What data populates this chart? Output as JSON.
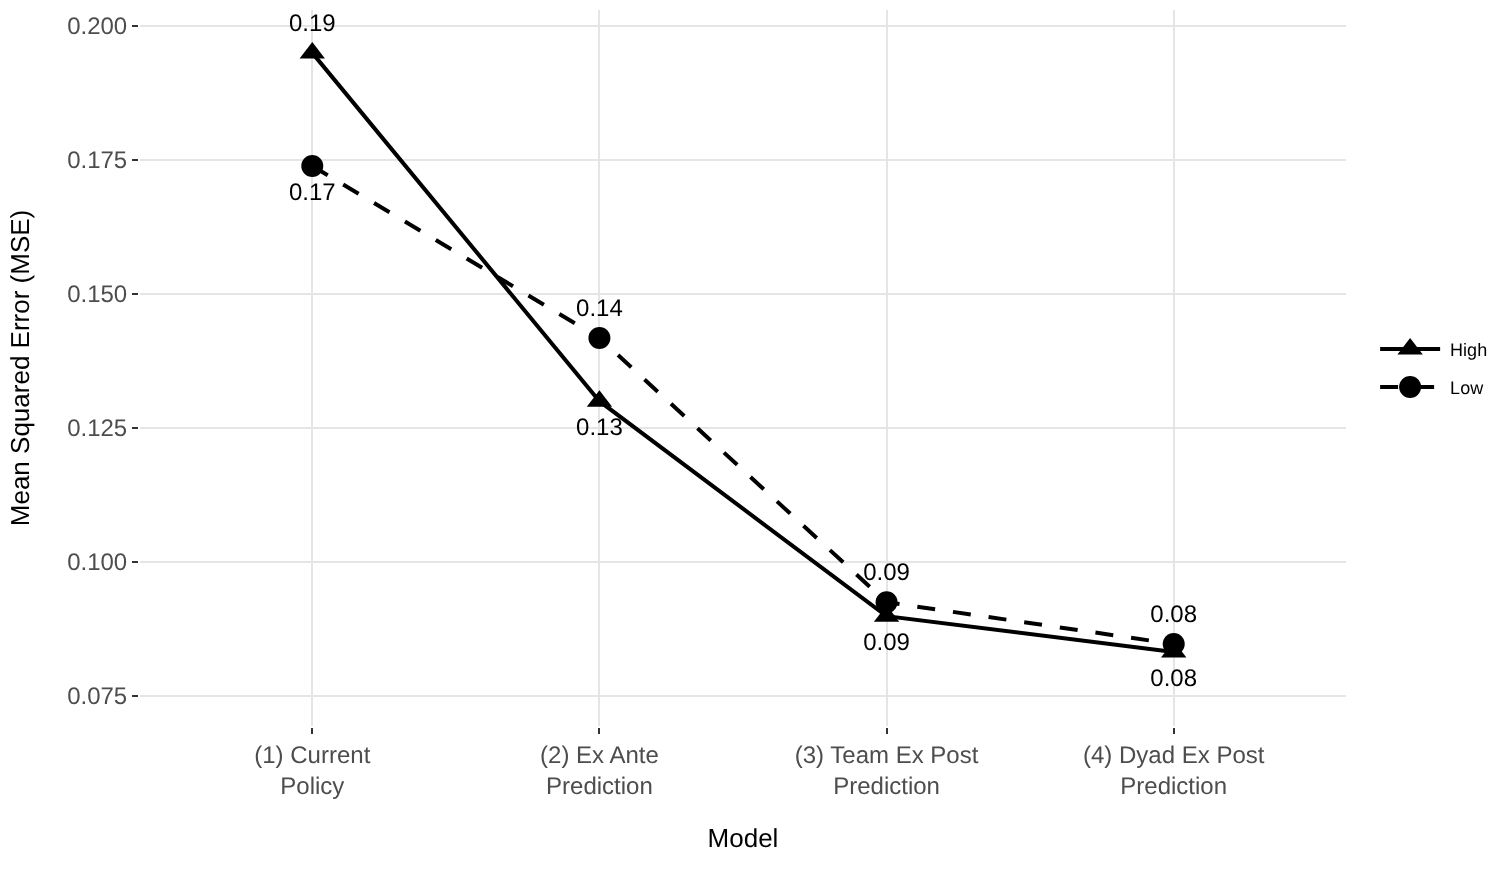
{
  "chart_data": {
    "type": "line",
    "xlabel": "Model",
    "ylabel": "Mean Squared Error (MSE)",
    "categories": [
      "(1) Current\nPolicy",
      "(2) Ex Ante\nPrediction",
      "(3) Team Ex Post\nPrediction",
      "(4) Dyad Ex Post\nPrediction"
    ],
    "series": [
      {
        "name": "High",
        "color": "#000000",
        "marker": "triangle",
        "line_style": "solid",
        "values": [
          0.195,
          0.13,
          0.0899,
          0.0832
        ],
        "value_labels": [
          "0.19",
          "0.13",
          "0.09",
          "0.08"
        ]
      },
      {
        "name": "Low",
        "color": "#000000",
        "marker": "circle",
        "line_style": "dashed",
        "values": [
          0.1739,
          0.1418,
          0.0925,
          0.0847
        ],
        "value_labels": [
          "0.17",
          "0.14",
          "0.09",
          "0.08"
        ]
      }
    ],
    "ylim": [
      0.0694,
      0.203
    ],
    "yticks": [
      {
        "value": 0.075,
        "label": "0.075"
      },
      {
        "value": 0.1,
        "label": "0.100"
      },
      {
        "value": 0.125,
        "label": "0.125"
      },
      {
        "value": 0.15,
        "label": "0.150"
      },
      {
        "value": 0.175,
        "label": "0.175"
      },
      {
        "value": 0.2,
        "label": "0.200"
      }
    ],
    "grid": true,
    "legend": "right"
  }
}
